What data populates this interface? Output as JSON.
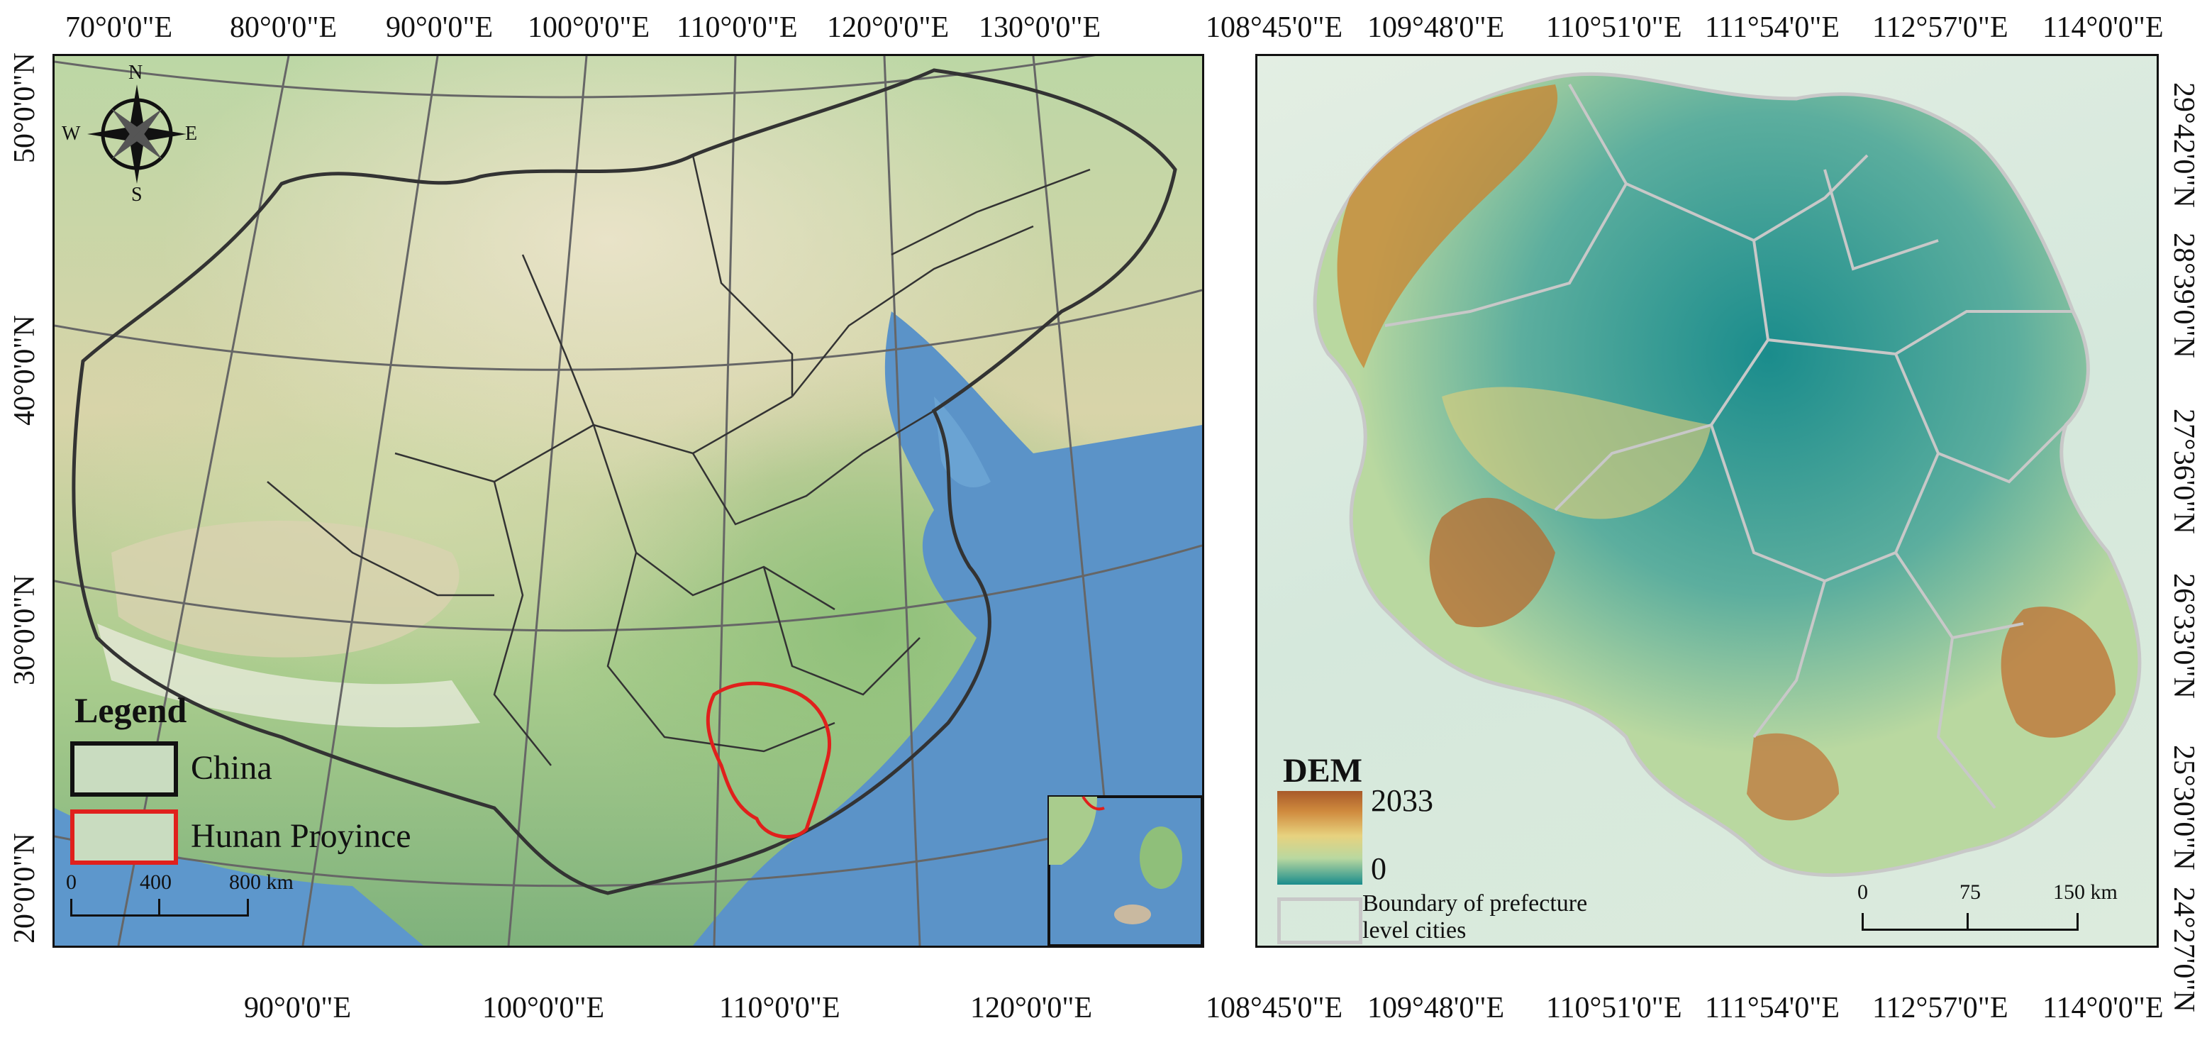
{
  "left_map": {
    "top_lon_labels": [
      "70°0'0\"E",
      "80°0'0\"E",
      "90°0'0\"E",
      "100°0'0\"E",
      "110°0'0\"E",
      "120°0'0\"E",
      "130°0'0\"E"
    ],
    "bottom_lon_labels": [
      "90°0'0\"E",
      "100°0'0\"E",
      "110°0'0\"E",
      "120°0'0\"E"
    ],
    "lat_labels": [
      "50°0'0\"N",
      "40°0'0\"N",
      "30°0'0\"N",
      "20°0'0\"N"
    ],
    "compass": {
      "n": "N",
      "s": "S",
      "e": "E",
      "w": "W"
    },
    "legend": {
      "title": "Legend",
      "items": [
        {
          "label": "China",
          "color": "#111111"
        },
        {
          "label": "Hunan Proyince",
          "color": "#e0201c"
        }
      ]
    },
    "scale": {
      "ticks": [
        "0",
        "400",
        "800 km"
      ]
    }
  },
  "right_map": {
    "top_lon_labels": [
      "108°45'0\"E",
      "109°48'0\"E",
      "110°51'0\"E",
      "111°54'0\"E",
      "112°57'0\"E",
      "114°0'0\"E"
    ],
    "bottom_lon_labels": [
      "108°45'0\"E",
      "109°48'0\"E",
      "110°51'0\"E",
      "111°54'0\"E",
      "112°57'0\"E",
      "114°0'0\"E"
    ],
    "lat_labels": [
      "29°42'0\"N",
      "28°39'0\"N",
      "27°36'0\"N",
      "26°33'0\"N",
      "25°30'0\"N",
      "24°27'0\"N"
    ],
    "legend": {
      "dem_title": "DEM",
      "dem_max": "2033",
      "dem_min": "0",
      "dem_colors": [
        "#a85a2a",
        "#d08b3e",
        "#e7d27f",
        "#b9d8a0",
        "#1a8c8c"
      ],
      "boundary_label_line1": "Boundary of prefecture",
      "boundary_label_line2": "level cities",
      "boundary_color": "#c8c8c8"
    },
    "scale": {
      "ticks": [
        "0",
        "75",
        "150 km"
      ]
    }
  }
}
